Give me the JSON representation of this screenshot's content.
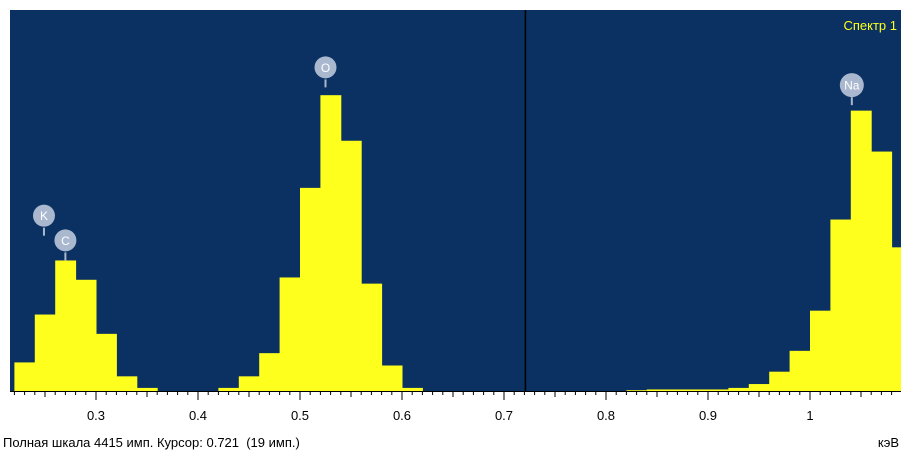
{
  "colors": {
    "plot_background": "#0a3161",
    "bars": "#ffff1e",
    "marker_fill": "#a9b7cf",
    "title_text": "#ffff1e",
    "cursor_line": "#000000"
  },
  "status_bar": {
    "full_scale_text": "Полная шкала 4415 имп. Курсор: 0.721  (19 имп.)",
    "unit": "кэВ"
  },
  "chart_data": {
    "type": "bar",
    "title": "Спектр 1",
    "xlabel": "кэВ",
    "ylabel": "",
    "xlim": [
      0.22,
      0.9
    ],
    "ylim": [
      0,
      4415
    ],
    "x_tick_labels": [
      "0.3",
      "0.4",
      "0.5",
      "0.6",
      "0.7",
      "0.8",
      "0.9",
      "1"
    ],
    "x_ticks": [
      0.3,
      0.4,
      0.5,
      0.6,
      0.7,
      0.8,
      0.9,
      1.0
    ],
    "x_minor_step": 0.01,
    "x_scale_note": "",
    "bin_width": 0.02,
    "bins_start": [
      0.22,
      0.24,
      0.26,
      0.28,
      0.3,
      0.32,
      0.34,
      0.36,
      0.38,
      0.4,
      0.42,
      0.44,
      0.46,
      0.48,
      0.5,
      0.52,
      0.54,
      0.56,
      0.58,
      0.6,
      0.62,
      0.64,
      0.66,
      0.68,
      0.7,
      0.72,
      0.74,
      0.76,
      0.78,
      0.8,
      0.82,
      0.84,
      0.86,
      0.88,
      0.9,
      0.92,
      0.94,
      0.96,
      0.98,
      1.0,
      1.02,
      1.04,
      1.06,
      1.08
    ],
    "counts": [
      370,
      990,
      1690,
      1440,
      740,
      190,
      40,
      0,
      0,
      0,
      40,
      190,
      490,
      1470,
      2630,
      3830,
      3240,
      1390,
      330,
      40,
      0,
      0,
      0,
      0,
      0,
      0,
      0,
      0,
      0,
      0,
      10,
      20,
      20,
      20,
      20,
      40,
      90,
      250,
      520,
      1040,
      2220,
      3630,
      3100,
      1860
    ],
    "cursor_x": 0.721,
    "cursor_counts": 19,
    "peak_labels": [
      {
        "element": "K",
        "x": 0.249,
        "y": 2270
      },
      {
        "element": "C",
        "x": 0.27,
        "y": 1950
      },
      {
        "element": "O",
        "x": 0.525,
        "y": 4190
      },
      {
        "element": "Na",
        "x": 1.041,
        "y": 3960
      }
    ]
  }
}
